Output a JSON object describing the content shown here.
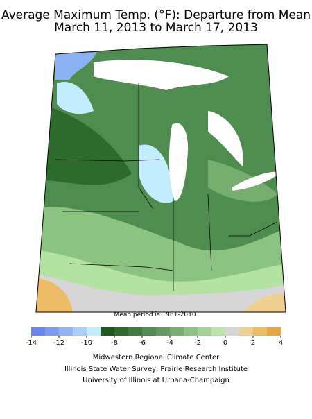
{
  "title": [
    "Average Maximum Temp. (°F): Departure from Mean",
    "March 11, 2013 to March 17, 2013"
  ],
  "note": "Mean period is 1981-2010.",
  "colorbar": {
    "range": [
      -14,
      4
    ],
    "ticks": [
      -14,
      -12,
      -10,
      -8,
      -6,
      -4,
      -2,
      0,
      2,
      4
    ],
    "colors": [
      "#6a86ee",
      "#7c9cf0",
      "#90b4f4",
      "#a8d0f8",
      "#c4ecff",
      "#1d5a1d",
      "#2d6b2d",
      "#3e7c3e",
      "#508c50",
      "#629c62",
      "#76ae70",
      "#8cc282",
      "#a4d494",
      "#bce6a8",
      "#d6d6d6",
      "#f0d090",
      "#ecbc66",
      "#e8a640"
    ]
  },
  "credits": [
    "Midwestern Regional Climate Center",
    "Illinois State Water Survey, Prairie Research Institute",
    "University of Illinois at Urbana-Champaign"
  ]
}
